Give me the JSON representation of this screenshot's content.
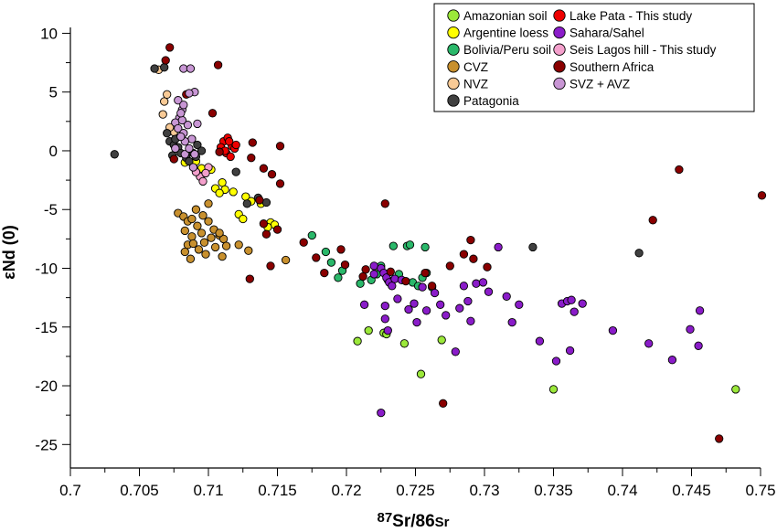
{
  "chart_data": {
    "type": "scatter",
    "xlabel_parts": [
      "87",
      "Sr/86",
      "Sr"
    ],
    "ylabel": "εNd (0)",
    "xlim": [
      0.7,
      0.75
    ],
    "ylim": [
      -27,
      10.5
    ],
    "x_ticks": [
      "0.7",
      "0.705",
      "0.71",
      "0.715",
      "0.72",
      "0.725",
      "0.73",
      "0.735",
      "0.74",
      "0.745",
      "0.75"
    ],
    "y_ticks": [
      "10",
      "5",
      "0",
      "-5",
      "-10",
      "-15",
      "-20",
      "-25"
    ],
    "legend_position": "top-right",
    "series": [
      {
        "name": "Amazonian soil",
        "color": "#9be83a",
        "points": [
          [
            0.7208,
            -16.2
          ],
          [
            0.7216,
            -15.3
          ],
          [
            0.7227,
            -15.5
          ],
          [
            0.7229,
            -15.6
          ],
          [
            0.7242,
            -16.4
          ],
          [
            0.7254,
            -19.0
          ],
          [
            0.7269,
            -16.1
          ],
          [
            0.735,
            -20.3
          ],
          [
            0.7482,
            -20.3
          ]
        ]
      },
      {
        "name": "Argentine loess",
        "color": "#ffff00",
        "points": [
          [
            0.7083,
            -1.0
          ],
          [
            0.7089,
            -1.2
          ],
          [
            0.7095,
            -1.5
          ],
          [
            0.7102,
            -1.6
          ],
          [
            0.711,
            -2.7
          ],
          [
            0.7105,
            -3.2
          ],
          [
            0.7112,
            -3.3
          ],
          [
            0.7118,
            -3.5
          ],
          [
            0.7127,
            -3.9
          ],
          [
            0.7131,
            -4.3
          ],
          [
            0.7138,
            -4.5
          ],
          [
            0.7108,
            -3.6
          ],
          [
            0.7122,
            -5.4
          ],
          [
            0.7125,
            -5.8
          ],
          [
            0.7145,
            -6.1
          ],
          [
            0.7148,
            -6.3
          ],
          [
            0.7143,
            -6.5
          ],
          [
            0.7091,
            -0.9
          ]
        ]
      },
      {
        "name": "Bolivia/Peru soil",
        "color": "#2ab86a",
        "points": [
          [
            0.7175,
            -7.2
          ],
          [
            0.7185,
            -8.6
          ],
          [
            0.7189,
            -9.5
          ],
          [
            0.7197,
            -10.2
          ],
          [
            0.7194,
            -10.8
          ],
          [
            0.721,
            -11.3
          ],
          [
            0.7218,
            -11.0
          ],
          [
            0.7222,
            -10.5
          ],
          [
            0.7225,
            -9.8
          ],
          [
            0.7234,
            -8.1
          ],
          [
            0.7238,
            -10.5
          ],
          [
            0.7244,
            -8.1
          ],
          [
            0.7248,
            -11.2
          ],
          [
            0.7252,
            -11.5
          ],
          [
            0.7255,
            -10.8
          ],
          [
            0.7257,
            -8.2
          ],
          [
            0.7258,
            -10.4
          ],
          [
            0.7262,
            -11.6
          ],
          [
            0.7246,
            -8.0
          ],
          [
            0.723,
            -11.0
          ]
        ]
      },
      {
        "name": "CVZ",
        "color": "#c8902e",
        "points": [
          [
            0.7078,
            -5.3
          ],
          [
            0.7082,
            -5.6
          ],
          [
            0.7085,
            -6.0
          ],
          [
            0.7083,
            -6.8
          ],
          [
            0.7088,
            -7.3
          ],
          [
            0.7085,
            -8.0
          ],
          [
            0.7083,
            -8.6
          ],
          [
            0.7087,
            -9.2
          ],
          [
            0.7092,
            -6.4
          ],
          [
            0.7095,
            -7.0
          ],
          [
            0.7097,
            -7.8
          ],
          [
            0.7093,
            -8.4
          ],
          [
            0.71,
            -6.0
          ],
          [
            0.7102,
            -7.4
          ],
          [
            0.7105,
            -8.2
          ],
          [
            0.7108,
            -7.2
          ],
          [
            0.7111,
            -7.5
          ],
          [
            0.7113,
            -8.1
          ],
          [
            0.711,
            -9.0
          ],
          [
            0.7104,
            -6.7
          ],
          [
            0.7091,
            -5.0
          ],
          [
            0.7096,
            -5.5
          ],
          [
            0.7108,
            -7.0
          ],
          [
            0.7098,
            -8.8
          ],
          [
            0.7088,
            -5.8
          ],
          [
            0.71,
            -4.5
          ],
          [
            0.7122,
            -8.0
          ],
          [
            0.7129,
            -8.5
          ],
          [
            0.7156,
            -9.3
          ],
          [
            0.7089,
            -7.9
          ]
        ]
      },
      {
        "name": "NVZ",
        "color": "#f8ca96",
        "points": [
          [
            0.7064,
            6.9
          ],
          [
            0.7068,
            4.2
          ],
          [
            0.707,
            4.8
          ],
          [
            0.7067,
            3.1
          ],
          [
            0.7075,
            1.6
          ],
          [
            0.7072,
            2.0
          ]
        ]
      },
      {
        "name": "Patagonia",
        "color": "#404040",
        "points": [
          [
            0.7032,
            -0.3
          ],
          [
            0.7061,
            7.0
          ],
          [
            0.7068,
            7.1
          ],
          [
            0.707,
            1.5
          ],
          [
            0.7072,
            0.8
          ],
          [
            0.7075,
            0.5
          ],
          [
            0.7074,
            -0.4
          ],
          [
            0.7078,
            0.3
          ],
          [
            0.708,
            -0.2
          ],
          [
            0.7084,
            -0.6
          ],
          [
            0.7086,
            -0.9
          ],
          [
            0.7089,
            -0.2
          ],
          [
            0.7092,
            0.5
          ],
          [
            0.7095,
            0.0
          ],
          [
            0.7091,
            -0.5
          ],
          [
            0.712,
            -1.8
          ],
          [
            0.7128,
            -4.5
          ],
          [
            0.7136,
            -4.0
          ],
          [
            0.7142,
            -4.4
          ],
          [
            0.7076,
            1.0
          ],
          [
            0.7335,
            -8.2
          ],
          [
            0.7412,
            -8.7
          ]
        ]
      },
      {
        "name": "Lake Pata - This study",
        "color": "#ee0000",
        "points": [
          [
            0.7111,
            0.8
          ],
          [
            0.7114,
            1.1
          ],
          [
            0.7117,
            0.4
          ],
          [
            0.7119,
            0.2
          ],
          [
            0.7113,
            -0.2
          ],
          [
            0.7116,
            -0.5
          ],
          [
            0.712,
            0.5
          ],
          [
            0.7109,
            0.3
          ],
          [
            0.7115,
            0.8
          ],
          [
            0.7112,
            0.0
          ]
        ]
      },
      {
        "name": "Sahara/Sahel",
        "color": "#8a1cc9",
        "points": [
          [
            0.7213,
            -13.1
          ],
          [
            0.722,
            -9.8
          ],
          [
            0.7225,
            -10.0
          ],
          [
            0.7227,
            -10.4
          ],
          [
            0.7229,
            -10.8
          ],
          [
            0.7231,
            -11.2
          ],
          [
            0.7233,
            -11.5
          ],
          [
            0.7235,
            -10.9
          ],
          [
            0.7237,
            -12.6
          ],
          [
            0.7225,
            -22.3
          ],
          [
            0.7228,
            -14.3
          ],
          [
            0.723,
            -15.3
          ],
          [
            0.724,
            -11.0
          ],
          [
            0.7245,
            -13.5
          ],
          [
            0.7249,
            -13.0
          ],
          [
            0.7251,
            -14.6
          ],
          [
            0.7255,
            -11.6
          ],
          [
            0.7264,
            -12.1
          ],
          [
            0.7268,
            -13.1
          ],
          [
            0.7272,
            -14.0
          ],
          [
            0.7279,
            -17.1
          ],
          [
            0.7282,
            -13.4
          ],
          [
            0.7285,
            -11.5
          ],
          [
            0.7288,
            -12.8
          ],
          [
            0.729,
            -14.5
          ],
          [
            0.7294,
            -11.3
          ],
          [
            0.7299,
            -11.2
          ],
          [
            0.7303,
            -12.0
          ],
          [
            0.731,
            -8.2
          ],
          [
            0.7316,
            -12.4
          ],
          [
            0.732,
            -14.6
          ],
          [
            0.7325,
            -13.1
          ],
          [
            0.734,
            -16.2
          ],
          [
            0.7352,
            -17.9
          ],
          [
            0.7356,
            -13.0
          ],
          [
            0.736,
            -12.8
          ],
          [
            0.7363,
            -12.7
          ],
          [
            0.7365,
            -13.7
          ],
          [
            0.7371,
            -13.0
          ],
          [
            0.7362,
            -17.0
          ],
          [
            0.7393,
            -15.3
          ],
          [
            0.7419,
            -16.4
          ],
          [
            0.7436,
            -17.8
          ],
          [
            0.7449,
            -15.2
          ],
          [
            0.7456,
            -13.6
          ],
          [
            0.7455,
            -16.6
          ],
          [
            0.722,
            -10.5
          ],
          [
            0.7258,
            -13.6
          ],
          [
            0.7228,
            -13.2
          ]
        ]
      },
      {
        "name": "Seis Lagos hill - This study",
        "color": "#f4a0cc",
        "points": [
          [
            0.7094,
            -2.2
          ],
          [
            0.7096,
            -2.6
          ],
          [
            0.71,
            -1.4
          ],
          [
            0.7091,
            -1.8
          ],
          [
            0.7098,
            -1.9
          ]
        ]
      },
      {
        "name": "Southern Africa",
        "color": "#8a0000",
        "points": [
          [
            0.7072,
            8.8
          ],
          [
            0.7069,
            7.7
          ],
          [
            0.7084,
            4.8
          ],
          [
            0.7107,
            7.3
          ],
          [
            0.7103,
            3.2
          ],
          [
            0.7075,
            -0.7
          ],
          [
            0.7108,
            -0.1
          ],
          [
            0.7132,
            0.7
          ],
          [
            0.7131,
            -0.6
          ],
          [
            0.7152,
            0.4
          ],
          [
            0.714,
            -1.5
          ],
          [
            0.7137,
            -4.2
          ],
          [
            0.714,
            -6.2
          ],
          [
            0.7142,
            -7.1
          ],
          [
            0.715,
            -6.7
          ],
          [
            0.7146,
            -2.0
          ],
          [
            0.7152,
            -2.8
          ],
          [
            0.713,
            -10.9
          ],
          [
            0.7145,
            -9.8
          ],
          [
            0.7169,
            -7.8
          ],
          [
            0.7178,
            -9.1
          ],
          [
            0.7184,
            -10.4
          ],
          [
            0.7196,
            -8.4
          ],
          [
            0.7199,
            -9.7
          ],
          [
            0.7212,
            -10.7
          ],
          [
            0.7214,
            -10.1
          ],
          [
            0.7228,
            -4.5
          ],
          [
            0.7232,
            -10.3
          ],
          [
            0.7243,
            -11.1
          ],
          [
            0.7257,
            -10.4
          ],
          [
            0.7262,
            -11.5
          ],
          [
            0.727,
            -21.5
          ],
          [
            0.7275,
            -9.8
          ],
          [
            0.7285,
            -8.8
          ],
          [
            0.729,
            -7.6
          ],
          [
            0.7302,
            -9.9
          ],
          [
            0.7422,
            -5.9
          ],
          [
            0.7441,
            -1.6
          ],
          [
            0.747,
            -24.5
          ],
          [
            0.7501,
            -3.8
          ],
          [
            0.7292,
            -9.2
          ]
        ]
      },
      {
        "name": "SVZ + AVZ",
        "color": "#c896d4",
        "points": [
          [
            0.7082,
            7.0
          ],
          [
            0.7087,
            7.0
          ],
          [
            0.709,
            5.0
          ],
          [
            0.7078,
            4.3
          ],
          [
            0.7081,
            3.5
          ],
          [
            0.7082,
            3.9
          ],
          [
            0.7079,
            2.8
          ],
          [
            0.7076,
            2.4
          ],
          [
            0.7078,
            1.9
          ],
          [
            0.7082,
            1.5
          ],
          [
            0.7085,
            2.2
          ],
          [
            0.7088,
            1.0
          ],
          [
            0.7083,
            0.8
          ],
          [
            0.708,
            1.2
          ],
          [
            0.7083,
            -0.3
          ],
          [
            0.7086,
            0.2
          ],
          [
            0.709,
            -0.3
          ],
          [
            0.7089,
            -1.4
          ],
          [
            0.7092,
            2.3
          ],
          [
            0.7081,
            2.6
          ],
          [
            0.708,
            3.2
          ],
          [
            0.7086,
            4.9
          ],
          [
            0.7076,
            0.2
          ]
        ]
      }
    ]
  }
}
